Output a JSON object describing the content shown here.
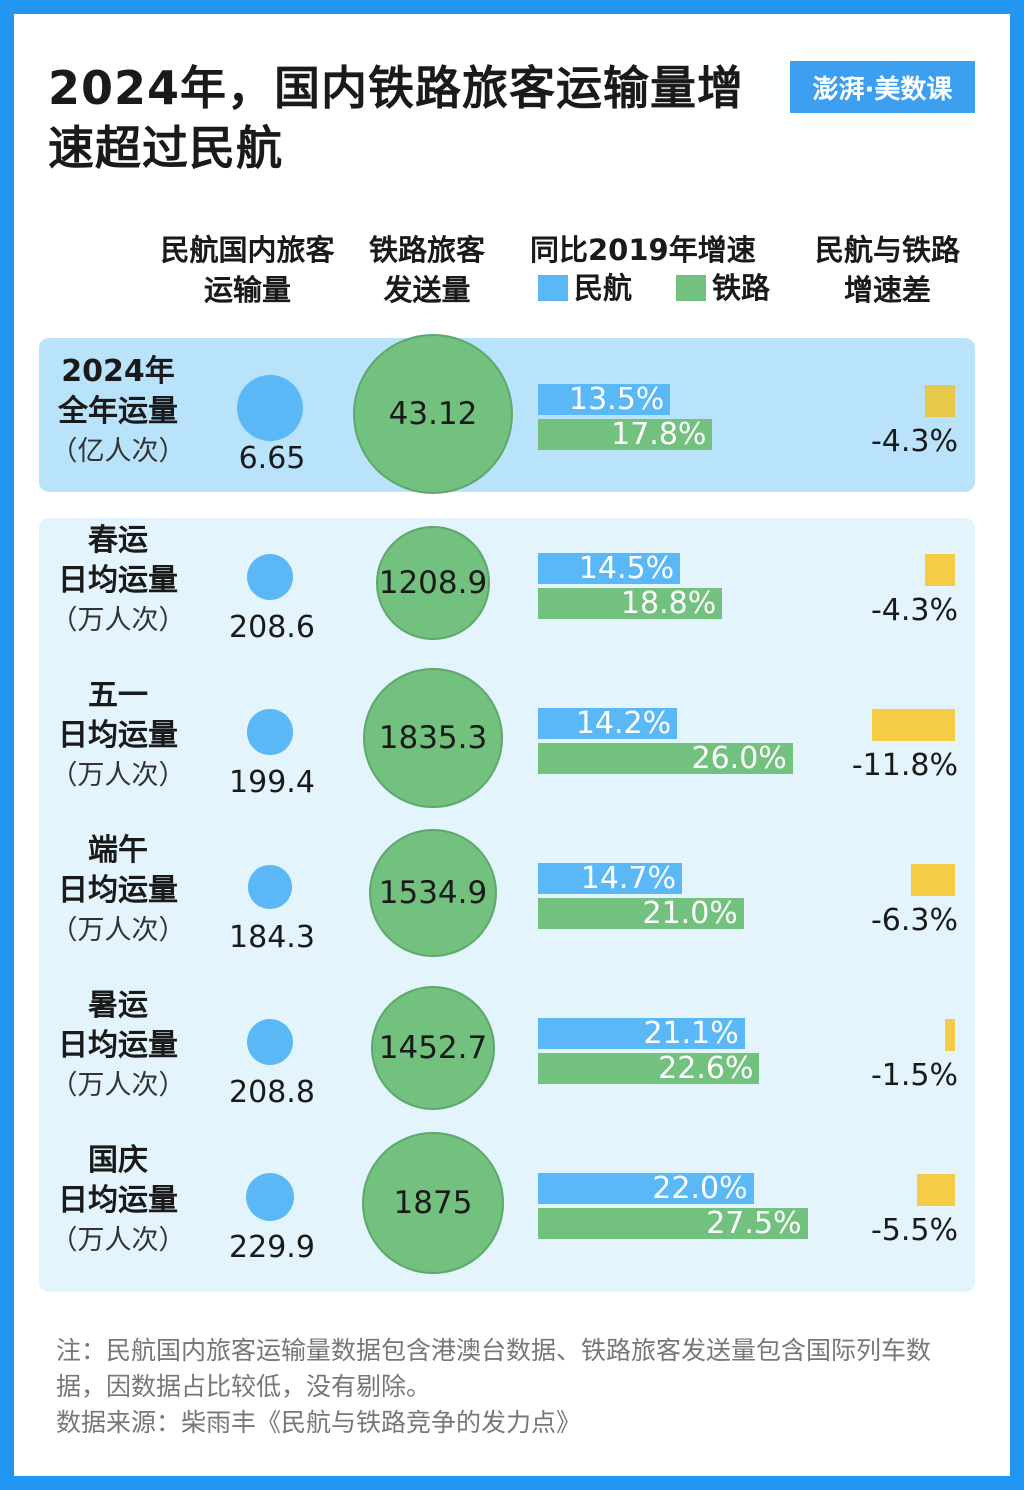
{
  "title": "2024年，国内铁路旅客运输量增速超过民航",
  "logo": "澎湃·美数课",
  "headers": {
    "civil": [
      "民航国内旅客",
      "运输量"
    ],
    "rail": [
      "铁路旅客",
      "发送量"
    ],
    "growth": "同比2019年增速",
    "diff": [
      "民航与铁路",
      "增速差"
    ]
  },
  "legend": {
    "civil": "民航",
    "rail": "铁路"
  },
  "colors": {
    "civil": "#5ab8f7",
    "rail": "#72c17e",
    "diff": "#f5cc45",
    "panel_top": "#b9e3fb",
    "panel_bottom": "#e3f4fc",
    "frame": "#2196f3"
  },
  "chart_data": {
    "type": "table",
    "columns": [
      "民航国内旅客运输量",
      "铁路旅客发送量",
      "同比2019年增速（民航）",
      "同比2019年增速（铁路）",
      "民航与铁路增速差"
    ],
    "rows": [
      {
        "label": [
          "2024年",
          "全年运量"
        ],
        "unit": "（亿人次）",
        "civil": "6.65",
        "rail": "43.12",
        "civil_growth": 13.5,
        "rail_growth": 17.8,
        "diff": -4.3
      },
      {
        "label": [
          "春运",
          "日均运量"
        ],
        "unit": "（万人次）",
        "civil": "208.6",
        "rail": "1208.9",
        "civil_growth": 14.5,
        "rail_growth": 18.8,
        "diff": -4.3
      },
      {
        "label": [
          "五一",
          "日均运量"
        ],
        "unit": "（万人次）",
        "civil": "199.4",
        "rail": "1835.3",
        "civil_growth": 14.2,
        "rail_growth": 26.0,
        "diff": -11.8
      },
      {
        "label": [
          "端午",
          "日均运量"
        ],
        "unit": "（万人次）",
        "civil": "184.3",
        "rail": "1534.9",
        "civil_growth": 14.7,
        "rail_growth": 21.0,
        "diff": -6.3
      },
      {
        "label": [
          "暑运",
          "日均运量"
        ],
        "unit": "（万人次）",
        "civil": "208.8",
        "rail": "1452.7",
        "civil_growth": 21.1,
        "rail_growth": 22.6,
        "diff": -1.5
      },
      {
        "label": [
          "国庆",
          "日均运量"
        ],
        "unit": "（万人次）",
        "civil": "229.9",
        "rail": "1875",
        "civil_growth": 22.0,
        "rail_growth": 27.5,
        "diff": -5.5
      }
    ]
  },
  "note": "注：民航国内旅客运输量数据包含港澳台数据、铁路旅客发送量包含国际列车数据，因数据占比较低，没有剔除。",
  "source": "数据来源：柴雨丰《民航与铁路竞争的发力点》"
}
